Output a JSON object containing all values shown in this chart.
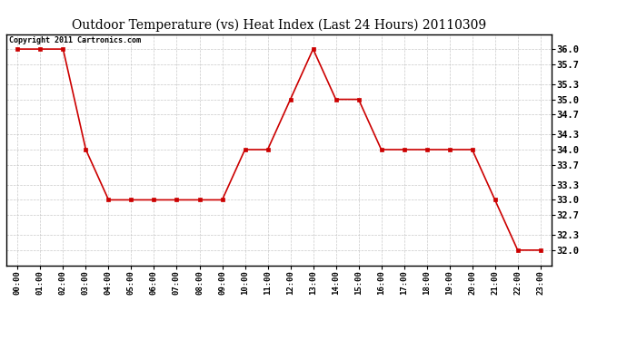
{
  "title": "Outdoor Temperature (vs) Heat Index (Last 24 Hours) 20110309",
  "copyright_text": "Copyright 2011 Cartronics.com",
  "hours": [
    "00:00",
    "01:00",
    "02:00",
    "03:00",
    "04:00",
    "05:00",
    "06:00",
    "07:00",
    "08:00",
    "09:00",
    "10:00",
    "11:00",
    "12:00",
    "13:00",
    "14:00",
    "15:00",
    "16:00",
    "17:00",
    "18:00",
    "19:00",
    "20:00",
    "21:00",
    "22:00",
    "23:00"
  ],
  "values": [
    36.0,
    36.0,
    36.0,
    34.0,
    33.0,
    33.0,
    33.0,
    33.0,
    33.0,
    33.0,
    34.0,
    34.0,
    35.0,
    36.0,
    35.0,
    35.0,
    34.0,
    34.0,
    34.0,
    34.0,
    34.0,
    33.0,
    32.0,
    32.0
  ],
  "line_color": "#cc0000",
  "marker": "s",
  "marker_size": 2.5,
  "marker_color": "#cc0000",
  "ylim_min": 31.7,
  "ylim_max": 36.3,
  "yticks": [
    32.0,
    32.3,
    32.7,
    33.0,
    33.3,
    33.7,
    34.0,
    34.3,
    34.7,
    35.0,
    35.3,
    35.7,
    36.0
  ],
  "background_color": "#ffffff",
  "plot_bg_color": "#ffffff",
  "grid_color": "#bbbbbb",
  "title_fontsize": 10,
  "copyright_fontsize": 6,
  "tick_fontsize": 6.5,
  "ytick_fontsize": 7.5,
  "linewidth": 1.2
}
